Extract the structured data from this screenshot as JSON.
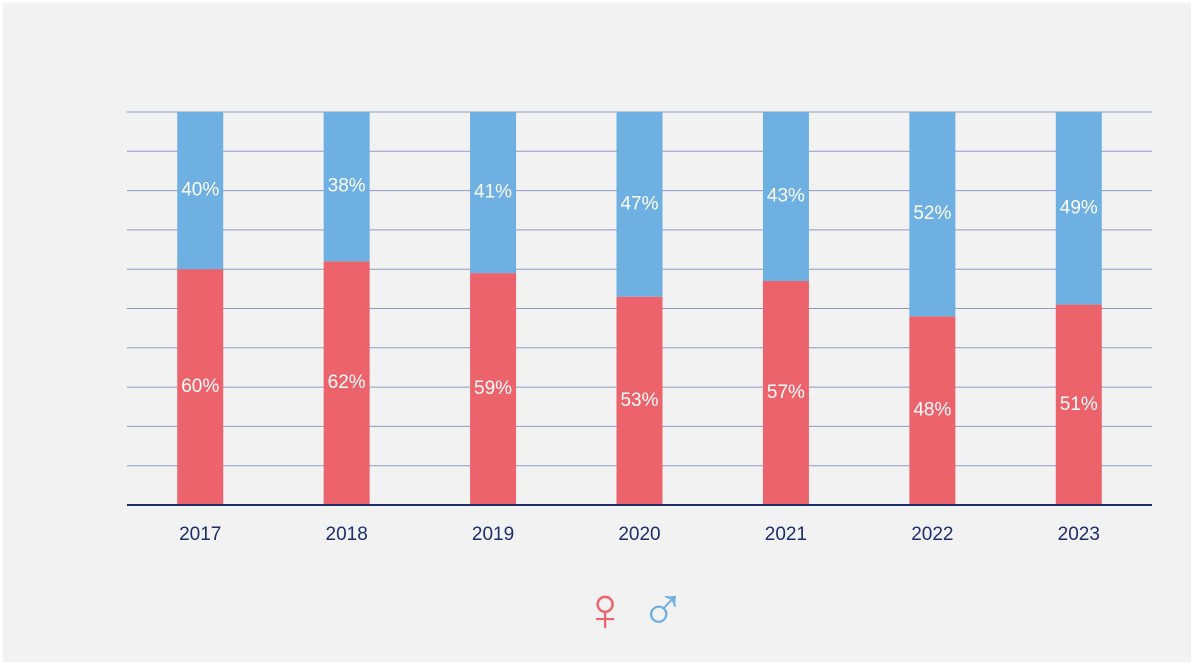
{
  "chart_data": {
    "type": "stacked_bar",
    "categories": [
      "2017",
      "2018",
      "2019",
      "2020",
      "2021",
      "2022",
      "2023"
    ],
    "series": [
      {
        "name": "♀",
        "color": "#ec636b",
        "values": [
          60,
          62,
          59,
          53,
          57,
          48,
          51
        ],
        "value_labels": [
          "60%",
          "62%",
          "59%",
          "53%",
          "57%",
          "48%",
          "51%"
        ]
      },
      {
        "name": "♂",
        "color": "#6eb0e2",
        "values": [
          40,
          38,
          41,
          47,
          43,
          52,
          49
        ],
        "value_labels": [
          "40%",
          "38%",
          "41%",
          "47%",
          "43%",
          "52%",
          "49%"
        ]
      }
    ],
    "ylim": [
      0,
      100
    ],
    "yticks": [
      0,
      10,
      20,
      30,
      40,
      50,
      60,
      70,
      80,
      90,
      100
    ],
    "grid": true
  }
}
